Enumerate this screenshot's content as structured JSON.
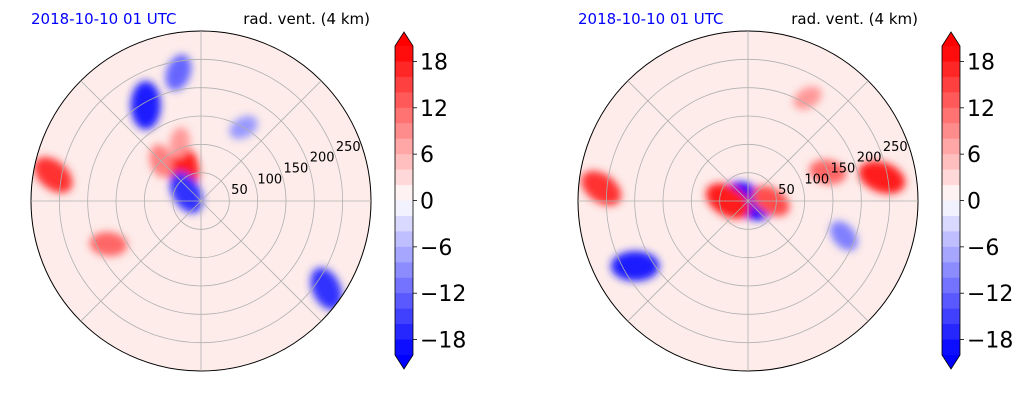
{
  "chart_data": [
    {
      "type": "heatmap",
      "projection": "polar",
      "title_left": "2018-10-10 01 UTC",
      "title_right": "rad. vent. (4 km)",
      "title_left_color": "#0000ff",
      "radial_tick_labels": [
        "50",
        "100",
        "150",
        "200",
        "250"
      ],
      "radial_ticks": [
        50,
        100,
        150,
        200,
        250
      ],
      "r_max": 300,
      "grid": true,
      "angular_grid_deg": [
        0,
        45,
        90,
        135,
        180,
        225,
        270,
        315
      ],
      "features": [
        {
          "kind": "pos",
          "angle": 120,
          "r": 60,
          "value": 18
        },
        {
          "kind": "pos",
          "angle": 135,
          "r": 100,
          "value": 10
        },
        {
          "kind": "pos",
          "angle": 110,
          "r": 110,
          "value": 8
        },
        {
          "kind": "neg",
          "angle": 150,
          "r": 30,
          "value": -16
        },
        {
          "kind": "neg",
          "angle": 120,
          "r": 195,
          "value": -18
        },
        {
          "kind": "neg",
          "angle": 100,
          "r": 230,
          "value": -12
        },
        {
          "kind": "pos",
          "angle": 170,
          "r": 265,
          "value": 16
        },
        {
          "kind": "pos",
          "angle": 205,
          "r": 180,
          "value": 12
        },
        {
          "kind": "neg",
          "angle": 325,
          "r": 270,
          "value": -16
        },
        {
          "kind": "neg",
          "angle": 60,
          "r": 150,
          "value": -8
        }
      ]
    },
    {
      "type": "heatmap",
      "projection": "polar",
      "title_left": "2018-10-10 01 UTC",
      "title_right": "rad. vent. (4 km)",
      "title_left_color": "#0000ff",
      "radial_tick_labels": [
        "50",
        "100",
        "150",
        "200",
        "250"
      ],
      "radial_ticks": [
        50,
        100,
        150,
        200,
        250
      ],
      "r_max": 300,
      "grid": true,
      "angular_grid_deg": [
        0,
        45,
        90,
        135,
        180,
        225,
        270,
        315
      ],
      "features": [
        {
          "kind": "neg",
          "angle": 0,
          "r": 0,
          "value": -20
        },
        {
          "kind": "pos",
          "angle": 180,
          "r": 35,
          "value": 18
        },
        {
          "kind": "pos",
          "angle": 0,
          "r": 40,
          "value": 14
        },
        {
          "kind": "pos",
          "angle": 10,
          "r": 240,
          "value": 18
        },
        {
          "kind": "pos",
          "angle": 20,
          "r": 150,
          "value": 12
        },
        {
          "kind": "pos",
          "angle": 175,
          "r": 260,
          "value": 16
        },
        {
          "kind": "neg",
          "angle": 210,
          "r": 230,
          "value": -18
        },
        {
          "kind": "neg",
          "angle": 340,
          "r": 180,
          "value": -10
        },
        {
          "kind": "pos",
          "angle": 60,
          "r": 210,
          "value": 8
        }
      ]
    }
  ],
  "colorbar": {
    "tick_labels": [
      "18",
      "12",
      "6",
      "0",
      "−6",
      "−12",
      "−18"
    ],
    "tick_values": [
      18,
      12,
      6,
      0,
      -6,
      -12,
      -18
    ],
    "vmin": -20,
    "vmax": 20,
    "extend": "both",
    "cmap": "bwr"
  }
}
